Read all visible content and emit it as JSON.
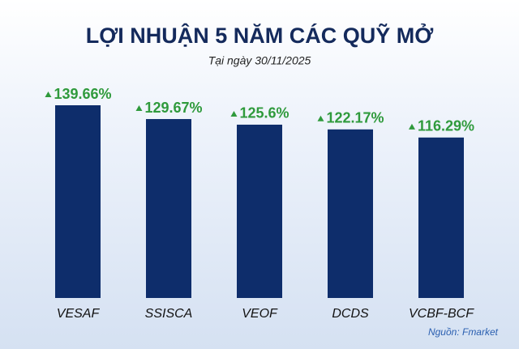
{
  "chart_data": {
    "type": "bar",
    "title": "LỢI NHUẬN 5 NĂM CÁC QUỸ MỞ",
    "subtitle": "Tại ngày 30/11/2025",
    "categories": [
      "VESAF",
      "SSISCA",
      "VEOF",
      "DCDS",
      "VCBF-BCF"
    ],
    "values": [
      139.66,
      129.67,
      125.6,
      122.17,
      116.29
    ],
    "value_labels": [
      "139.66%",
      "129.67%",
      "125.6%",
      "122.17%",
      "116.29%"
    ],
    "color": "#0e2d6b",
    "label_color": "#2f9a3c",
    "source": "Nguồn: Fmarket"
  }
}
